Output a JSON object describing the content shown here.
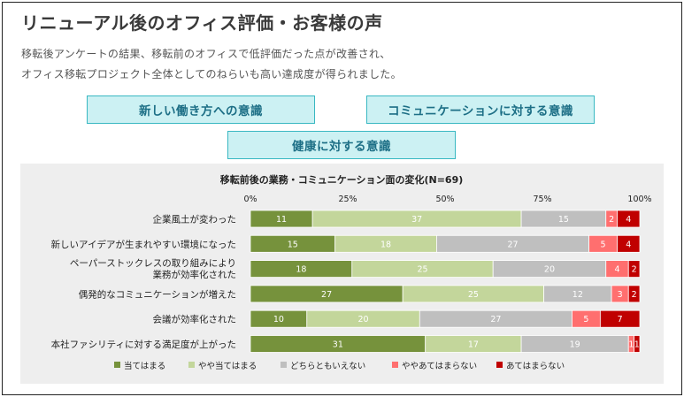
{
  "page": {
    "title": "リニューアル後のオフィス評価・お客様の声",
    "description_lines": [
      "移転後アンケートの結果、移転前のオフィスで低評価だった点が改善され、",
      "オフィス移転プロジェクト全体としてのねらいも高い達成度が得られました。"
    ],
    "tags": [
      "新しい働き方への意識",
      "コミュニケーションに対する意識",
      "健康に対する意識"
    ]
  },
  "colors": {
    "series": [
      "#76923c",
      "#c3d69b",
      "#bfbfbf",
      "#ff6f6f",
      "#c00000"
    ],
    "tag_bg": "#ccf1f3",
    "tag_border": "#39b8c2",
    "tag_text": "#1d6f86"
  },
  "chart_data": {
    "type": "bar",
    "orientation": "horizontal",
    "stacked": true,
    "title": "移転前後の業務・コミュニケーション面の変化(N=69)",
    "x_tick_labels": [
      "0%",
      "25%",
      "50%",
      "75%",
      "100%"
    ],
    "xlim": [
      0,
      69
    ],
    "grid": false,
    "legend_position": "bottom",
    "categories": [
      "企業風土が変わった",
      "新しいアイデアが生まれやすい環境になった",
      "ペーパーストックレスの取り組みにより業務が効率化された",
      "偶発的なコミュニケーションが増えた",
      "会議が効率化された",
      "本社ファシリティに対する満足度が上がった"
    ],
    "series": [
      {
        "name": "当てはまる",
        "values": [
          11,
          15,
          18,
          27,
          10,
          31
        ]
      },
      {
        "name": "やや当てはまる",
        "values": [
          37,
          18,
          25,
          25,
          20,
          17
        ]
      },
      {
        "name": "どちらともいえない",
        "values": [
          15,
          27,
          20,
          12,
          27,
          19
        ]
      },
      {
        "name": "ややあてはまらない",
        "values": [
          2,
          5,
          4,
          3,
          5,
          1
        ]
      },
      {
        "name": "あてはまらない",
        "values": [
          4,
          4,
          2,
          2,
          7,
          1
        ]
      }
    ]
  }
}
